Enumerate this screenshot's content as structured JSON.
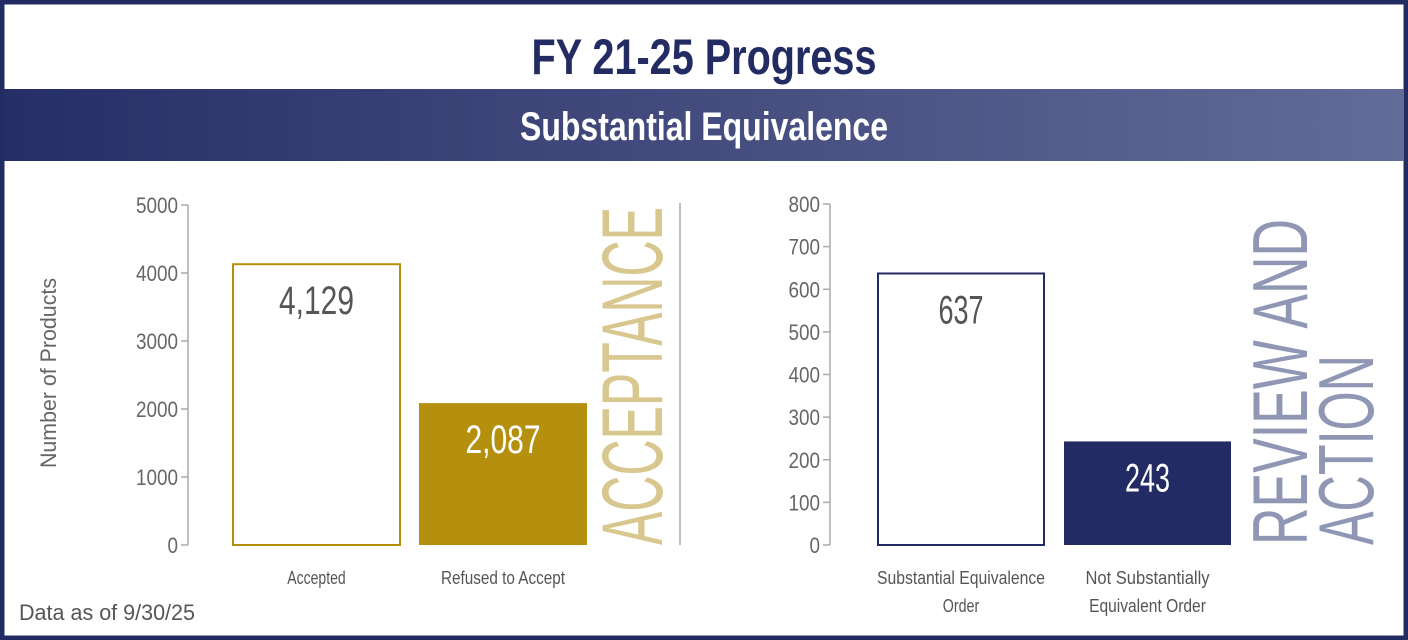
{
  "title": "FY 21-25 Progress",
  "subtitle": "Substantial Equivalence",
  "footnote": "Data as of 9/30/25",
  "colors": {
    "navy": "#222b63",
    "gold": "#b5900f",
    "gold_light": "#d8c78e",
    "navy_light": "#9097b5"
  },
  "chart_data": [
    {
      "type": "bar",
      "section_label": "ACCEPTANCE",
      "ylabel": "Number of Products",
      "ylim": [
        0,
        5000
      ],
      "yticks": [
        0,
        1000,
        2000,
        3000,
        4000,
        5000
      ],
      "categories": [
        "Accepted",
        "Refused to Accept"
      ],
      "values": [
        4129,
        2087
      ],
      "data_labels": [
        "4,129",
        "2,087"
      ],
      "styles": [
        "outline",
        "filled"
      ],
      "color": "#b5900f",
      "grid": false
    },
    {
      "type": "bar",
      "section_label": [
        "REVIEW AND",
        "ACTION"
      ],
      "ylim": [
        0,
        800
      ],
      "yticks": [
        0,
        100,
        200,
        300,
        400,
        500,
        600,
        700,
        800
      ],
      "categories": [
        [
          "Substantial Equivalence",
          "Order"
        ],
        [
          "Not Substantially",
          "Equivalent Order"
        ]
      ],
      "values": [
        637,
        243
      ],
      "data_labels": [
        "637",
        "243"
      ],
      "styles": [
        "outline",
        "filled"
      ],
      "color": "#222b63",
      "grid": false
    }
  ]
}
